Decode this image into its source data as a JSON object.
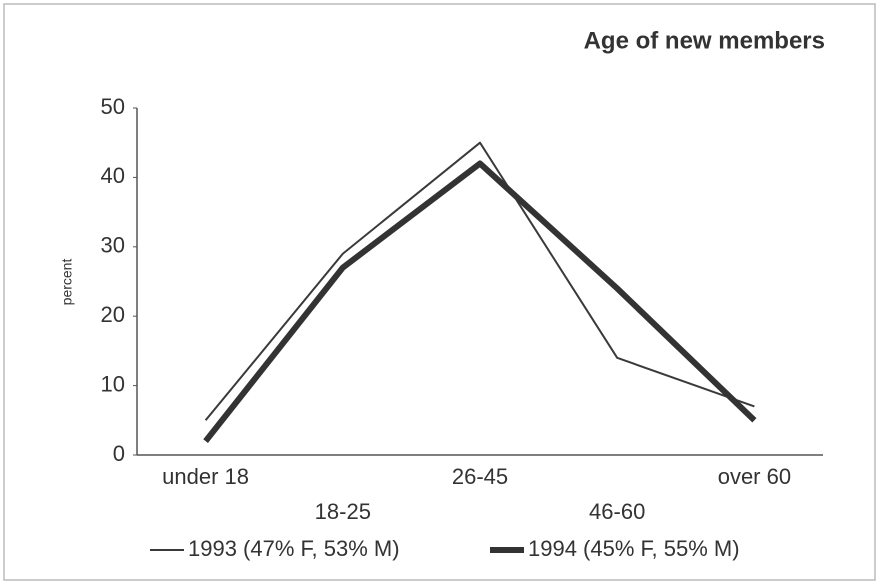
{
  "chart_data": {
    "type": "line",
    "title": "Age of new members",
    "y_label": "percent",
    "categories": [
      "under 18",
      "18-25",
      "26-45",
      "46-60",
      "over 60"
    ],
    "series": [
      {
        "name": "1993 (47% F, 53% M)",
        "color": "#3a3a3a",
        "width": 2,
        "values": [
          5,
          29,
          45,
          14,
          7
        ]
      },
      {
        "name": "1994 (45% F, 55% M)",
        "color": "#333333",
        "width": 6,
        "values": [
          2,
          27,
          42,
          24,
          5
        ]
      }
    ],
    "ylim": [
      0,
      50
    ],
    "yticks": [
      0,
      10,
      20,
      30,
      40,
      50
    ],
    "grid": false,
    "legend": "bottom"
  }
}
